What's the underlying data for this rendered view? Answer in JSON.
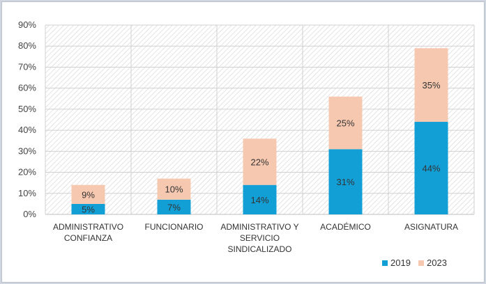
{
  "chart_data": {
    "type": "bar",
    "stacked": true,
    "categories": [
      [
        "ADMINISTRATIVO",
        "CONFIANZA"
      ],
      [
        "FUNCIONARIO"
      ],
      [
        "ADMINISTRATIVO Y",
        "SERVICIO",
        "SINDICALIZADO"
      ],
      [
        "ACADÉMICO"
      ],
      [
        "ASIGNATURA"
      ]
    ],
    "series": [
      {
        "name": "2019",
        "color": "#129fd6",
        "values": [
          5,
          7,
          14,
          31,
          44
        ],
        "labels": [
          "5%",
          "7%",
          "14%",
          "31%",
          "44%"
        ]
      },
      {
        "name": "2023",
        "color": "#f7c8b0",
        "values": [
          9,
          10,
          22,
          25,
          35
        ],
        "labels": [
          "9%",
          "10%",
          "22%",
          "25%",
          "35%"
        ]
      }
    ],
    "ylim": [
      0,
      90
    ],
    "yticks": [
      "0%",
      "10%",
      "20%",
      "30%",
      "40%",
      "50%",
      "60%",
      "70%",
      "80%",
      "90%"
    ],
    "grid": true,
    "legend_position": "bottom-right",
    "background": "hatched"
  }
}
